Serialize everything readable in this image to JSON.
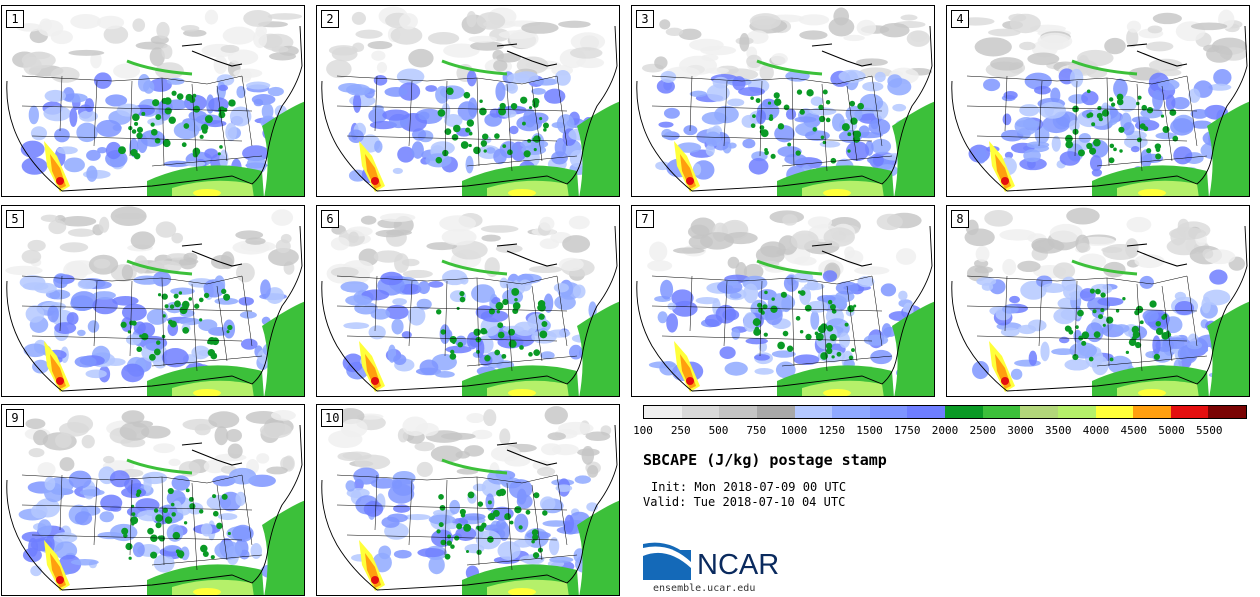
{
  "members": [
    "1",
    "2",
    "3",
    "4",
    "5",
    "6",
    "7",
    "8",
    "9",
    "10"
  ],
  "colorbar": {
    "colors": [
      "#efefef",
      "#d9d9d9",
      "#c4c4c4",
      "#a8a8a8",
      "#b4c8ff",
      "#8fa9ff",
      "#7e95ff",
      "#6e7eff",
      "#0a9a25",
      "#3cc03a",
      "#b2d67a",
      "#b5f06a",
      "#ffff3a",
      "#ff9f0f",
      "#e40f0f",
      "#7a0404"
    ],
    "tick_labels": [
      "100",
      "250",
      "500",
      "750",
      "1000",
      "1250",
      "1500",
      "1750",
      "2000",
      "2500",
      "3000",
      "3500",
      "4000",
      "4500",
      "5000",
      "5500"
    ]
  },
  "title": "SBCAPE (J/kg) postage stamp",
  "init": "Init: Mon 2018-07-09 00 UTC",
  "valid": "Valid: Tue 2018-07-10 04 UTC",
  "logo_text": "NCAR",
  "url": "ensemble.ucar.edu"
}
